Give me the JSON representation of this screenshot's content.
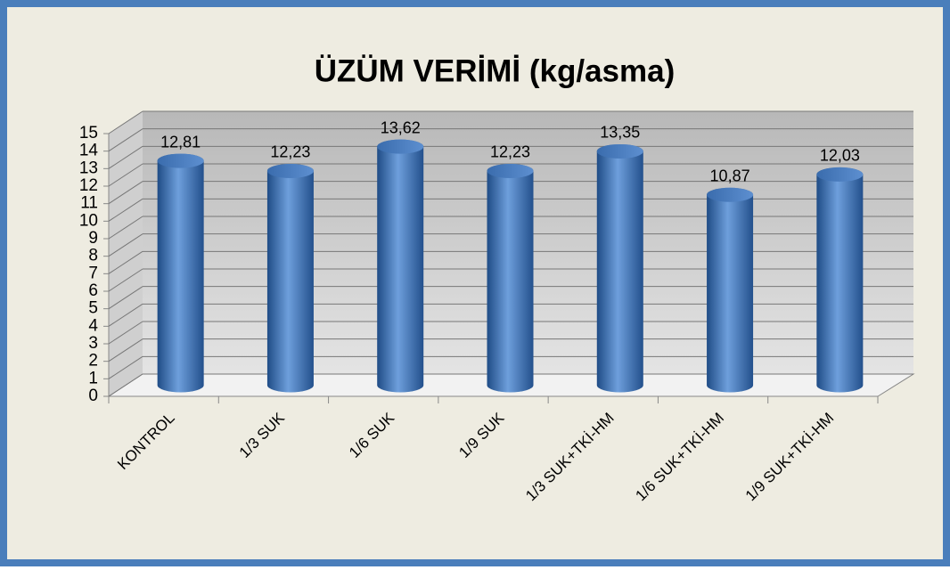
{
  "chart_data": {
    "type": "bar3d",
    "title": "ÜZÜM  VERİMİ (kg/asma)",
    "categories": [
      "KONTROL",
      "1/3 SUK",
      "1/6 SUK",
      "1/9 SUK",
      "1/3 SUK+TKİ-HM",
      "1/6 SUK+TKİ-HM",
      "1/9 SUK+TKİ-HM"
    ],
    "values": [
      12.81,
      12.23,
      13.62,
      12.23,
      13.35,
      10.87,
      12.03
    ],
    "value_labels": [
      "12,81",
      "12,23",
      "13,62",
      "12,23",
      "13,35",
      "10,87",
      "12,03"
    ],
    "color": "#4a7ebb",
    "ylim": [
      0,
      15
    ],
    "yticks": [
      0,
      1,
      2,
      3,
      4,
      5,
      6,
      7,
      8,
      9,
      10,
      11,
      12,
      13,
      14,
      15
    ],
    "grid": true
  }
}
